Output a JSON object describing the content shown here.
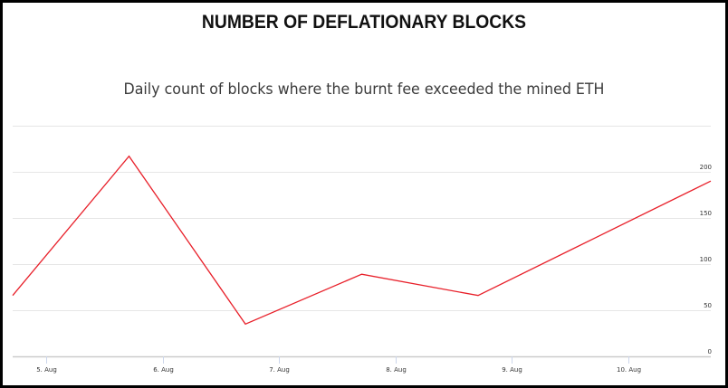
{
  "chart_data": {
    "type": "line",
    "title": "NUMBER OF DEFLATIONARY BLOCKS",
    "subtitle": "Daily count of blocks where the burnt fee exceeded the mined ETH",
    "xlabel": "",
    "ylabel": "",
    "x_tick_labels": [
      "5. Aug",
      "6. Aug",
      "7. Aug",
      "8. Aug",
      "9. Aug",
      "10. Aug"
    ],
    "y_tick_labels": [
      "0",
      "50",
      "100",
      "150",
      "200"
    ],
    "ylim": [
      0,
      250
    ],
    "y_axis_position": "right",
    "grid": true,
    "legend": null,
    "series": [
      {
        "name": "Deflationary blocks",
        "color": "#e8202a",
        "x": [
          "4. Aug 18:00",
          "5. Aug 18:00",
          "6. Aug 18:00",
          "7. Aug 18:00",
          "8. Aug 18:00",
          "9. Aug 18:00",
          "10. Aug 18:00"
        ],
        "values": [
          66,
          217,
          35,
          89,
          66,
          128,
          190
        ]
      }
    ]
  },
  "header": {
    "title": "NUMBER OF DEFLATIONARY BLOCKS",
    "subtitle": "Daily count of blocks where the burnt fee exceeded the mined ETH"
  },
  "colors": {
    "line": "#e8202a",
    "grid": "#e6e6e6",
    "axis": "#ccd6eb",
    "background": "#ffffff",
    "frame": "#000000"
  }
}
